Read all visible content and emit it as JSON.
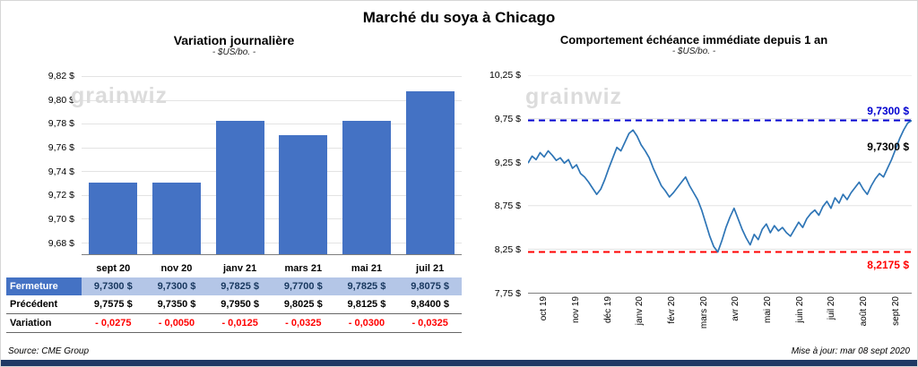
{
  "page": {
    "title": "Marché du soya à Chicago",
    "source_note": "Source: CME Group",
    "update_note": "Mise à jour: mar 08 sept 2020",
    "watermark": "grainwiz",
    "accent_bar_color": "#1F3864"
  },
  "chart_data": [
    {
      "type": "bar",
      "title": "Variation journalière",
      "subtitle": "- $US/bo. -",
      "categories": [
        "sept 20",
        "nov 20",
        "janv 21",
        "mars 21",
        "mai 21",
        "juil 21"
      ],
      "values": [
        9.73,
        9.73,
        9.7825,
        9.77,
        9.7825,
        9.8075
      ],
      "ylim": [
        9.67,
        9.82
      ],
      "yticks": [
        9.82,
        9.8,
        9.78,
        9.76,
        9.74,
        9.72,
        9.7,
        9.68
      ],
      "ytick_labels": [
        "9,82 $",
        "9,80 $",
        "9,78 $",
        "9,76 $",
        "9,74 $",
        "9,72 $",
        "9,70 $",
        "9,68 $"
      ],
      "bar_color": "#4472C4",
      "grid": true,
      "legend": "none"
    },
    {
      "type": "line",
      "title": "Comportement échéance immédiate depuis 1 an",
      "subtitle": "- $US/bo. -",
      "x_labels": [
        "oct 19",
        "nov 19",
        "déc 19",
        "janv 20",
        "févr 20",
        "mars 20",
        "avr 20",
        "mai 20",
        "juin 20",
        "juil 20",
        "août 20",
        "sept 20"
      ],
      "values": [
        9.24,
        9.32,
        9.28,
        9.36,
        9.31,
        9.38,
        9.33,
        9.27,
        9.3,
        9.24,
        9.28,
        9.18,
        9.22,
        9.12,
        9.08,
        9.02,
        8.95,
        8.88,
        8.94,
        9.05,
        9.18,
        9.3,
        9.42,
        9.38,
        9.48,
        9.58,
        9.62,
        9.55,
        9.45,
        9.38,
        9.3,
        9.18,
        9.08,
        8.98,
        8.92,
        8.85,
        8.9,
        8.96,
        9.02,
        9.08,
        8.98,
        8.9,
        8.82,
        8.7,
        8.55,
        8.4,
        8.28,
        8.2175,
        8.35,
        8.5,
        8.62,
        8.72,
        8.6,
        8.48,
        8.38,
        8.3,
        8.42,
        8.36,
        8.48,
        8.54,
        8.44,
        8.52,
        8.46,
        8.5,
        8.44,
        8.4,
        8.48,
        8.56,
        8.5,
        8.6,
        8.66,
        8.7,
        8.64,
        8.74,
        8.8,
        8.72,
        8.84,
        8.78,
        8.88,
        8.82,
        8.9,
        8.96,
        9.02,
        8.94,
        8.88,
        8.98,
        9.06,
        9.12,
        9.08,
        9.18,
        9.28,
        9.4,
        9.52,
        9.62,
        9.7,
        9.73
      ],
      "ylim": [
        7.75,
        10.25
      ],
      "yticks": [
        10.25,
        9.75,
        9.25,
        8.75,
        8.25,
        7.75
      ],
      "ytick_labels": [
        "10,25 $",
        "9,75 $",
        "9,25 $",
        "8,75 $",
        "8,25 $",
        "7,75 $"
      ],
      "line_color": "#2E75B6",
      "high_line": {
        "value": 9.73,
        "label": "9,7300 $",
        "color": "#0000D0"
      },
      "low_line": {
        "value": 8.2175,
        "label": "8,2175 $",
        "color": "#FF0000"
      },
      "last_point_label": "9,7300 $",
      "grid": true,
      "legend": "none"
    }
  ],
  "table": {
    "columns": [
      "sept 20",
      "nov 20",
      "janv 21",
      "mars 21",
      "mai 21",
      "juil 21"
    ],
    "rows": [
      {
        "label": "Fermeture",
        "style": "close",
        "values": [
          "9,7300  $",
          "9,7300  $",
          "9,7825  $",
          "9,7700  $",
          "9,7825  $",
          "9,8075  $"
        ]
      },
      {
        "label": "Précédent",
        "style": "previous",
        "values": [
          "9,7575  $",
          "9,7350  $",
          "9,7950  $",
          "9,8025  $",
          "9,8125  $",
          "9,8400  $"
        ]
      },
      {
        "label": "Variation",
        "style": "variation",
        "values": [
          "- 0,0275",
          "- 0,0050",
          "- 0,0125",
          "- 0,0325",
          "- 0,0300",
          "- 0,0325"
        ]
      }
    ]
  }
}
